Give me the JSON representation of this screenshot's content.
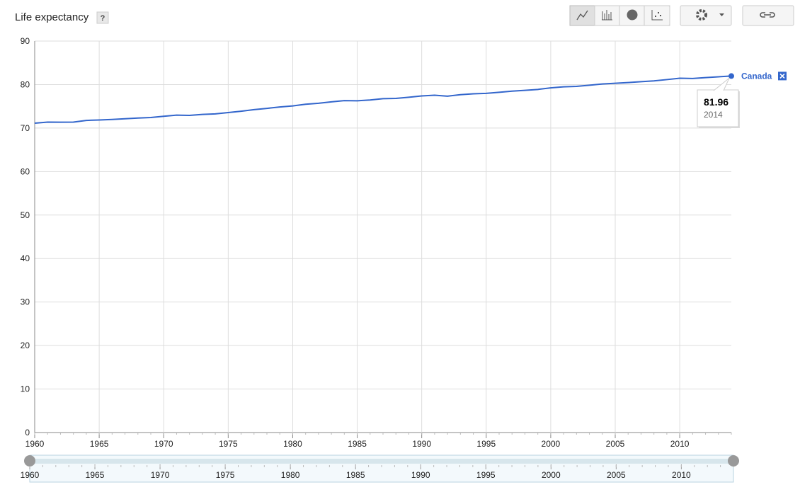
{
  "chart_data": {
    "type": "line",
    "title": "Life expectancy",
    "help": "?",
    "x": [
      1960,
      1961,
      1962,
      1963,
      1964,
      1965,
      1966,
      1967,
      1968,
      1969,
      1970,
      1971,
      1972,
      1973,
      1974,
      1975,
      1976,
      1977,
      1978,
      1979,
      1980,
      1981,
      1982,
      1983,
      1984,
      1985,
      1986,
      1987,
      1988,
      1989,
      1990,
      1991,
      1992,
      1993,
      1994,
      1995,
      1996,
      1997,
      1998,
      1999,
      2000,
      2001,
      2002,
      2003,
      2004,
      2005,
      2006,
      2007,
      2008,
      2009,
      2010,
      2011,
      2012,
      2013,
      2014
    ],
    "series": [
      {
        "name": "Canada",
        "color": "#3366cc",
        "values": [
          71.13,
          71.37,
          71.34,
          71.37,
          71.76,
          71.85,
          71.97,
          72.14,
          72.31,
          72.43,
          72.7,
          72.97,
          72.92,
          73.14,
          73.26,
          73.57,
          73.87,
          74.23,
          74.52,
          74.85,
          75.08,
          75.48,
          75.69,
          76.03,
          76.3,
          76.27,
          76.45,
          76.76,
          76.82,
          77.08,
          77.38,
          77.55,
          77.33,
          77.68,
          77.88,
          77.97,
          78.23,
          78.48,
          78.66,
          78.88,
          79.24,
          79.48,
          79.59,
          79.84,
          80.14,
          80.29,
          80.45,
          80.66,
          80.85,
          81.14,
          81.45,
          81.4,
          81.59,
          81.78,
          81.96
        ]
      }
    ],
    "xlim": [
      1960,
      2014
    ],
    "xticks": [
      1960,
      1965,
      1970,
      1975,
      1980,
      1985,
      1990,
      1995,
      2000,
      2005,
      2010
    ],
    "ylim": [
      0,
      90
    ],
    "yticks": [
      0,
      10,
      20,
      30,
      40,
      50,
      60,
      70,
      80,
      90
    ],
    "grid": true
  }
}
